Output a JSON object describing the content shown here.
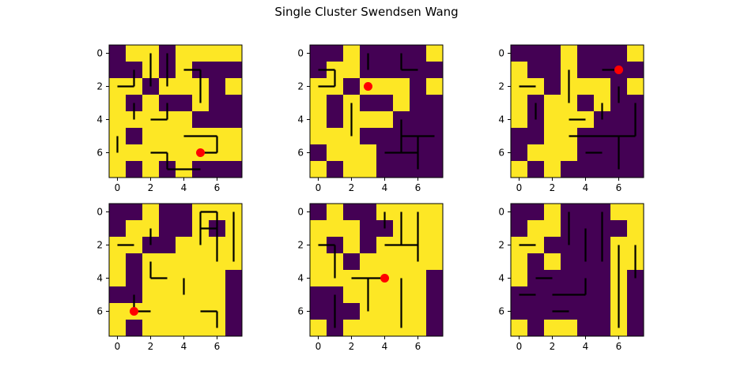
{
  "figure": {
    "title": "Single Cluster Swendsen Wang"
  },
  "colors": {
    "state_0": "#440154",
    "state_1": "#fde725",
    "bond": "#000000",
    "seed": "#ff0000"
  },
  "chart_data": [
    {
      "type": "heatmap",
      "title": "",
      "xlabel": "",
      "ylabel": "",
      "x_ticks": [
        "0",
        "2",
        "4",
        "6"
      ],
      "y_ticks": [
        "0",
        "2",
        "4",
        "6"
      ],
      "xlim": [
        -0.5,
        7.5
      ],
      "ylim": [
        7.5,
        -0.5
      ],
      "grid": false,
      "cells": [
        [
          0,
          1,
          1,
          0,
          1,
          1,
          1,
          1
        ],
        [
          0,
          0,
          1,
          0,
          1,
          0,
          0,
          0
        ],
        [
          1,
          1,
          0,
          1,
          1,
          1,
          0,
          1
        ],
        [
          1,
          0,
          1,
          0,
          0,
          1,
          0,
          0
        ],
        [
          1,
          1,
          1,
          1,
          1,
          0,
          0,
          0
        ],
        [
          1,
          0,
          1,
          1,
          1,
          1,
          1,
          1
        ],
        [
          1,
          1,
          1,
          1,
          1,
          1,
          1,
          1
        ],
        [
          1,
          0,
          1,
          0,
          1,
          0,
          0,
          0
        ]
      ],
      "h_bonds": [
        [
          1,
          4,
          5
        ],
        [
          2,
          0,
          1
        ],
        [
          4,
          2,
          3
        ],
        [
          5,
          4,
          5
        ],
        [
          5,
          5,
          6
        ],
        [
          6,
          2,
          3
        ],
        [
          6,
          5,
          6
        ],
        [
          7,
          3,
          4
        ],
        [
          7,
          4,
          5
        ]
      ],
      "v_bonds": [
        [
          2,
          0,
          2
        ],
        [
          3,
          0,
          2
        ],
        [
          1,
          1,
          2
        ],
        [
          5,
          1,
          2
        ],
        [
          1,
          3,
          4
        ],
        [
          3,
          3,
          4
        ],
        [
          5,
          2,
          3
        ],
        [
          0,
          5,
          6
        ],
        [
          3,
          6,
          7
        ],
        [
          6,
          5,
          6
        ]
      ],
      "seed": {
        "row": 6,
        "col": 5
      }
    },
    {
      "type": "heatmap",
      "title": "",
      "xlabel": "",
      "ylabel": "",
      "x_ticks": [
        "0",
        "2",
        "4",
        "6"
      ],
      "y_ticks": [
        "0",
        "2",
        "4",
        "6"
      ],
      "xlim": [
        -0.5,
        7.5
      ],
      "ylim": [
        7.5,
        -0.5
      ],
      "grid": false,
      "cells": [
        [
          0,
          0,
          1,
          0,
          0,
          0,
          0,
          1
        ],
        [
          0,
          1,
          1,
          0,
          0,
          0,
          0,
          0
        ],
        [
          1,
          1,
          0,
          1,
          1,
          1,
          0,
          1
        ],
        [
          1,
          0,
          1,
          0,
          0,
          1,
          0,
          0
        ],
        [
          1,
          0,
          1,
          1,
          1,
          0,
          0,
          0
        ],
        [
          1,
          1,
          1,
          0,
          0,
          0,
          0,
          0
        ],
        [
          0,
          1,
          1,
          1,
          0,
          0,
          0,
          0
        ],
        [
          1,
          0,
          1,
          1,
          0,
          0,
          0,
          0
        ]
      ],
      "h_bonds": [
        [
          1,
          0,
          1
        ],
        [
          1,
          5,
          6
        ],
        [
          2,
          0,
          1
        ],
        [
          5,
          5,
          6
        ],
        [
          5,
          6,
          7
        ],
        [
          6,
          4,
          5
        ],
        [
          6,
          5,
          6
        ]
      ],
      "v_bonds": [
        [
          1,
          1,
          2
        ],
        [
          2,
          3,
          5
        ],
        [
          5,
          4,
          6
        ],
        [
          6,
          5,
          7
        ],
        [
          3,
          0,
          1
        ],
        [
          5,
          0,
          1
        ]
      ],
      "seed": {
        "row": 2,
        "col": 3
      }
    },
    {
      "type": "heatmap",
      "title": "",
      "xlabel": "",
      "ylabel": "",
      "x_ticks": [
        "0",
        "2",
        "4",
        "6"
      ],
      "y_ticks": [
        "0",
        "2",
        "4",
        "6"
      ],
      "xlim": [
        -0.5,
        7.5
      ],
      "ylim": [
        7.5,
        -0.5
      ],
      "grid": false,
      "cells": [
        [
          0,
          0,
          0,
          1,
          0,
          0,
          0,
          1
        ],
        [
          1,
          0,
          0,
          1,
          0,
          0,
          0,
          0
        ],
        [
          1,
          1,
          0,
          1,
          1,
          1,
          0,
          1
        ],
        [
          1,
          0,
          1,
          1,
          0,
          1,
          0,
          0
        ],
        [
          1,
          0,
          1,
          1,
          1,
          0,
          0,
          0
        ],
        [
          0,
          0,
          1,
          1,
          0,
          0,
          0,
          0
        ],
        [
          0,
          1,
          1,
          1,
          0,
          0,
          0,
          0
        ],
        [
          1,
          0,
          1,
          0,
          0,
          0,
          0,
          0
        ]
      ],
      "h_bonds": [
        [
          1,
          5,
          6
        ],
        [
          2,
          0,
          1
        ],
        [
          4,
          3,
          4
        ],
        [
          5,
          3,
          4
        ],
        [
          5,
          4,
          5
        ],
        [
          5,
          5,
          6
        ],
        [
          5,
          6,
          7
        ],
        [
          6,
          4,
          5
        ]
      ],
      "v_bonds": [
        [
          3,
          1,
          3
        ],
        [
          5,
          3,
          4
        ],
        [
          6,
          5,
          7
        ],
        [
          7,
          3,
          5
        ],
        [
          1,
          3,
          4
        ],
        [
          6,
          2,
          3
        ]
      ],
      "seed": {
        "row": 1,
        "col": 6
      }
    },
    {
      "type": "heatmap",
      "title": "",
      "xlabel": "",
      "ylabel": "",
      "x_ticks": [
        "0",
        "2",
        "4",
        "6"
      ],
      "y_ticks": [
        "0",
        "2",
        "4",
        "6"
      ],
      "xlim": [
        -0.5,
        7.5
      ],
      "ylim": [
        7.5,
        -0.5
      ],
      "grid": false,
      "cells": [
        [
          0,
          0,
          1,
          0,
          0,
          1,
          1,
          1
        ],
        [
          0,
          1,
          1,
          0,
          0,
          1,
          0,
          1
        ],
        [
          1,
          1,
          0,
          0,
          1,
          1,
          1,
          1
        ],
        [
          1,
          0,
          1,
          1,
          1,
          1,
          1,
          1
        ],
        [
          1,
          0,
          1,
          1,
          1,
          1,
          1,
          0
        ],
        [
          0,
          0,
          1,
          1,
          1,
          1,
          1,
          0
        ],
        [
          1,
          1,
          1,
          1,
          1,
          1,
          1,
          0
        ],
        [
          1,
          0,
          1,
          1,
          1,
          1,
          1,
          0
        ]
      ],
      "h_bonds": [
        [
          0,
          5,
          6
        ],
        [
          1,
          5,
          6
        ],
        [
          2,
          0,
          1
        ],
        [
          4,
          2,
          3
        ],
        [
          6,
          1,
          2
        ],
        [
          6,
          5,
          6
        ]
      ],
      "v_bonds": [
        [
          5,
          0,
          2
        ],
        [
          6,
          0,
          3
        ],
        [
          7,
          0,
          3
        ],
        [
          2,
          3,
          4
        ],
        [
          4,
          4,
          5
        ],
        [
          1,
          5,
          6
        ],
        [
          6,
          6,
          7
        ],
        [
          2,
          1,
          2
        ]
      ],
      "seed": {
        "row": 6,
        "col": 1
      }
    },
    {
      "type": "heatmap",
      "title": "",
      "xlabel": "",
      "ylabel": "",
      "x_ticks": [
        "0",
        "2",
        "4",
        "6"
      ],
      "y_ticks": [
        "0",
        "2",
        "4",
        "6"
      ],
      "xlim": [
        -0.5,
        7.5
      ],
      "ylim": [
        7.5,
        -0.5
      ],
      "grid": false,
      "cells": [
        [
          0,
          1,
          0,
          0,
          1,
          1,
          1,
          1
        ],
        [
          1,
          1,
          1,
          0,
          0,
          1,
          1,
          1
        ],
        [
          1,
          0,
          1,
          0,
          1,
          1,
          1,
          1
        ],
        [
          1,
          1,
          0,
          1,
          1,
          1,
          1,
          1
        ],
        [
          1,
          1,
          1,
          1,
          1,
          1,
          1,
          0
        ],
        [
          0,
          0,
          1,
          1,
          1,
          1,
          1,
          0
        ],
        [
          0,
          0,
          0,
          1,
          1,
          1,
          1,
          0
        ],
        [
          1,
          0,
          1,
          1,
          1,
          1,
          1,
          0
        ]
      ],
      "h_bonds": [
        [
          2,
          0,
          1
        ],
        [
          2,
          4,
          5
        ],
        [
          2,
          5,
          6
        ],
        [
          4,
          2,
          3
        ],
        [
          4,
          3,
          4
        ]
      ],
      "v_bonds": [
        [
          1,
          2,
          4
        ],
        [
          5,
          0,
          2
        ],
        [
          6,
          0,
          3
        ],
        [
          5,
          4,
          7
        ],
        [
          1,
          5,
          7
        ],
        [
          3,
          4,
          6
        ],
        [
          4,
          0,
          1
        ]
      ],
      "seed": {
        "row": 4,
        "col": 4
      }
    },
    {
      "type": "heatmap",
      "title": "",
      "xlabel": "",
      "ylabel": "",
      "x_ticks": [
        "0",
        "2",
        "4",
        "6"
      ],
      "y_ticks": [
        "0",
        "2",
        "4",
        "6"
      ],
      "xlim": [
        -0.5,
        7.5
      ],
      "ylim": [
        7.5,
        -0.5
      ],
      "grid": false,
      "cells": [
        [
          0,
          0,
          1,
          0,
          0,
          0,
          1,
          1
        ],
        [
          0,
          1,
          1,
          0,
          0,
          0,
          0,
          1
        ],
        [
          1,
          1,
          0,
          0,
          0,
          0,
          1,
          1
        ],
        [
          1,
          0,
          1,
          0,
          0,
          0,
          1,
          1
        ],
        [
          1,
          0,
          0,
          0,
          0,
          0,
          1,
          0
        ],
        [
          0,
          0,
          0,
          0,
          0,
          0,
          1,
          0
        ],
        [
          0,
          0,
          0,
          0,
          0,
          0,
          1,
          0
        ],
        [
          1,
          0,
          1,
          1,
          0,
          0,
          1,
          0
        ]
      ],
      "h_bonds": [
        [
          2,
          0,
          1
        ],
        [
          4,
          1,
          2
        ],
        [
          5,
          0,
          1
        ],
        [
          5,
          2,
          3
        ],
        [
          5,
          3,
          4
        ],
        [
          6,
          2,
          3
        ]
      ],
      "v_bonds": [
        [
          3,
          0,
          2
        ],
        [
          4,
          1,
          3
        ],
        [
          5,
          0,
          3
        ],
        [
          6,
          2,
          7
        ],
        [
          7,
          2,
          4
        ],
        [
          4,
          4,
          5
        ]
      ],
      "seed": null
    }
  ]
}
